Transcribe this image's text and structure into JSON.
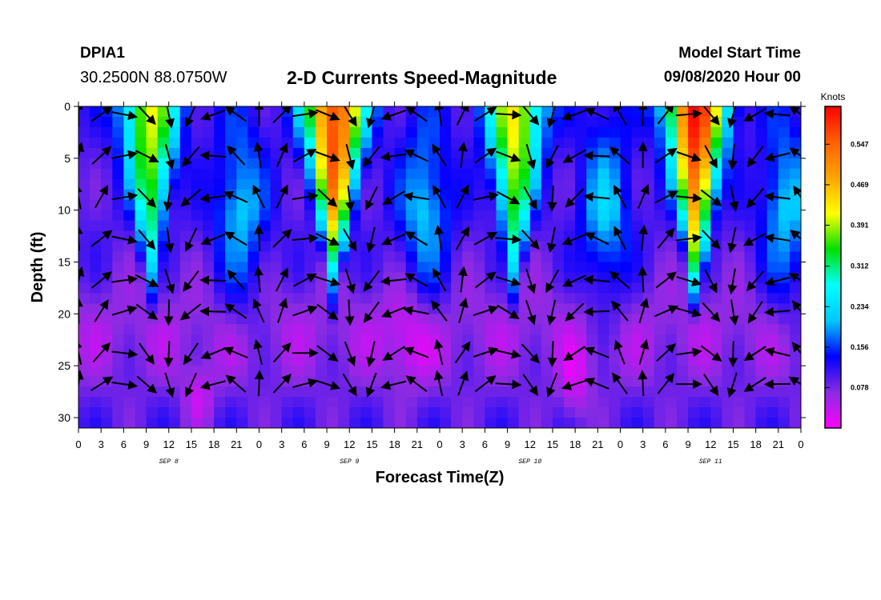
{
  "header": {
    "station": "DPIA1",
    "location": "30.2500N 88.0750W",
    "title": "2-D Currents Speed-Magnitude",
    "model_start_label": "Model Start Time",
    "model_start_value": "09/08/2020 Hour 00"
  },
  "chart_data": {
    "type": "heatmap",
    "xlabel": "Forecast Time(Z)",
    "ylabel": "Depth (ft)",
    "x_tick_labels": [
      "0",
      "3",
      "6",
      "9",
      "12",
      "15",
      "18",
      "21",
      "0",
      "3",
      "6",
      "9",
      "12",
      "15",
      "18",
      "21",
      "0",
      "3",
      "6",
      "9",
      "12",
      "15",
      "18",
      "21",
      "0",
      "3",
      "6",
      "9",
      "12",
      "15",
      "18",
      "21",
      "0"
    ],
    "day_labels": [
      "SEP 8",
      "SEP 9",
      "SEP 10",
      "SEP 11"
    ],
    "xlim_hours": [
      0,
      96
    ],
    "y_ticks": [
      0,
      5,
      10,
      15,
      20,
      25,
      30
    ],
    "ylim": [
      0,
      31
    ],
    "y_inverted": true,
    "colorbar": {
      "unit": "Knots",
      "ticks": [
        0.078,
        0.156,
        0.234,
        0.312,
        0.391,
        0.469,
        0.547
      ],
      "range": [
        0.0,
        0.62
      ],
      "colors": [
        "#ff00ff",
        "#8a2be2",
        "#0000ff",
        "#00c8ff",
        "#00ffff",
        "#00e000",
        "#ffff00",
        "#ffa500",
        "#ff6000",
        "#ff0000"
      ]
    },
    "speed_peaks": [
      {
        "hour": 9.5,
        "depth_ft": 5,
        "speed": 0.4
      },
      {
        "hour": 34,
        "depth_ft": 4,
        "speed": 0.58
      },
      {
        "hour": 58,
        "depth_ft": 4,
        "speed": 0.42
      },
      {
        "hour": 82,
        "depth_ft": 3,
        "speed": 0.6
      }
    ],
    "vector_hours": [
      0,
      3,
      6,
      9,
      12,
      15,
      18,
      21,
      24,
      27,
      30,
      33,
      36,
      39,
      42,
      45,
      48,
      51,
      54,
      57,
      60,
      63,
      66,
      69,
      72,
      75,
      78,
      81,
      84,
      87,
      90,
      93,
      96
    ],
    "vector_depths_ft": [
      0,
      4,
      8,
      12,
      16,
      19,
      23,
      26
    ]
  }
}
